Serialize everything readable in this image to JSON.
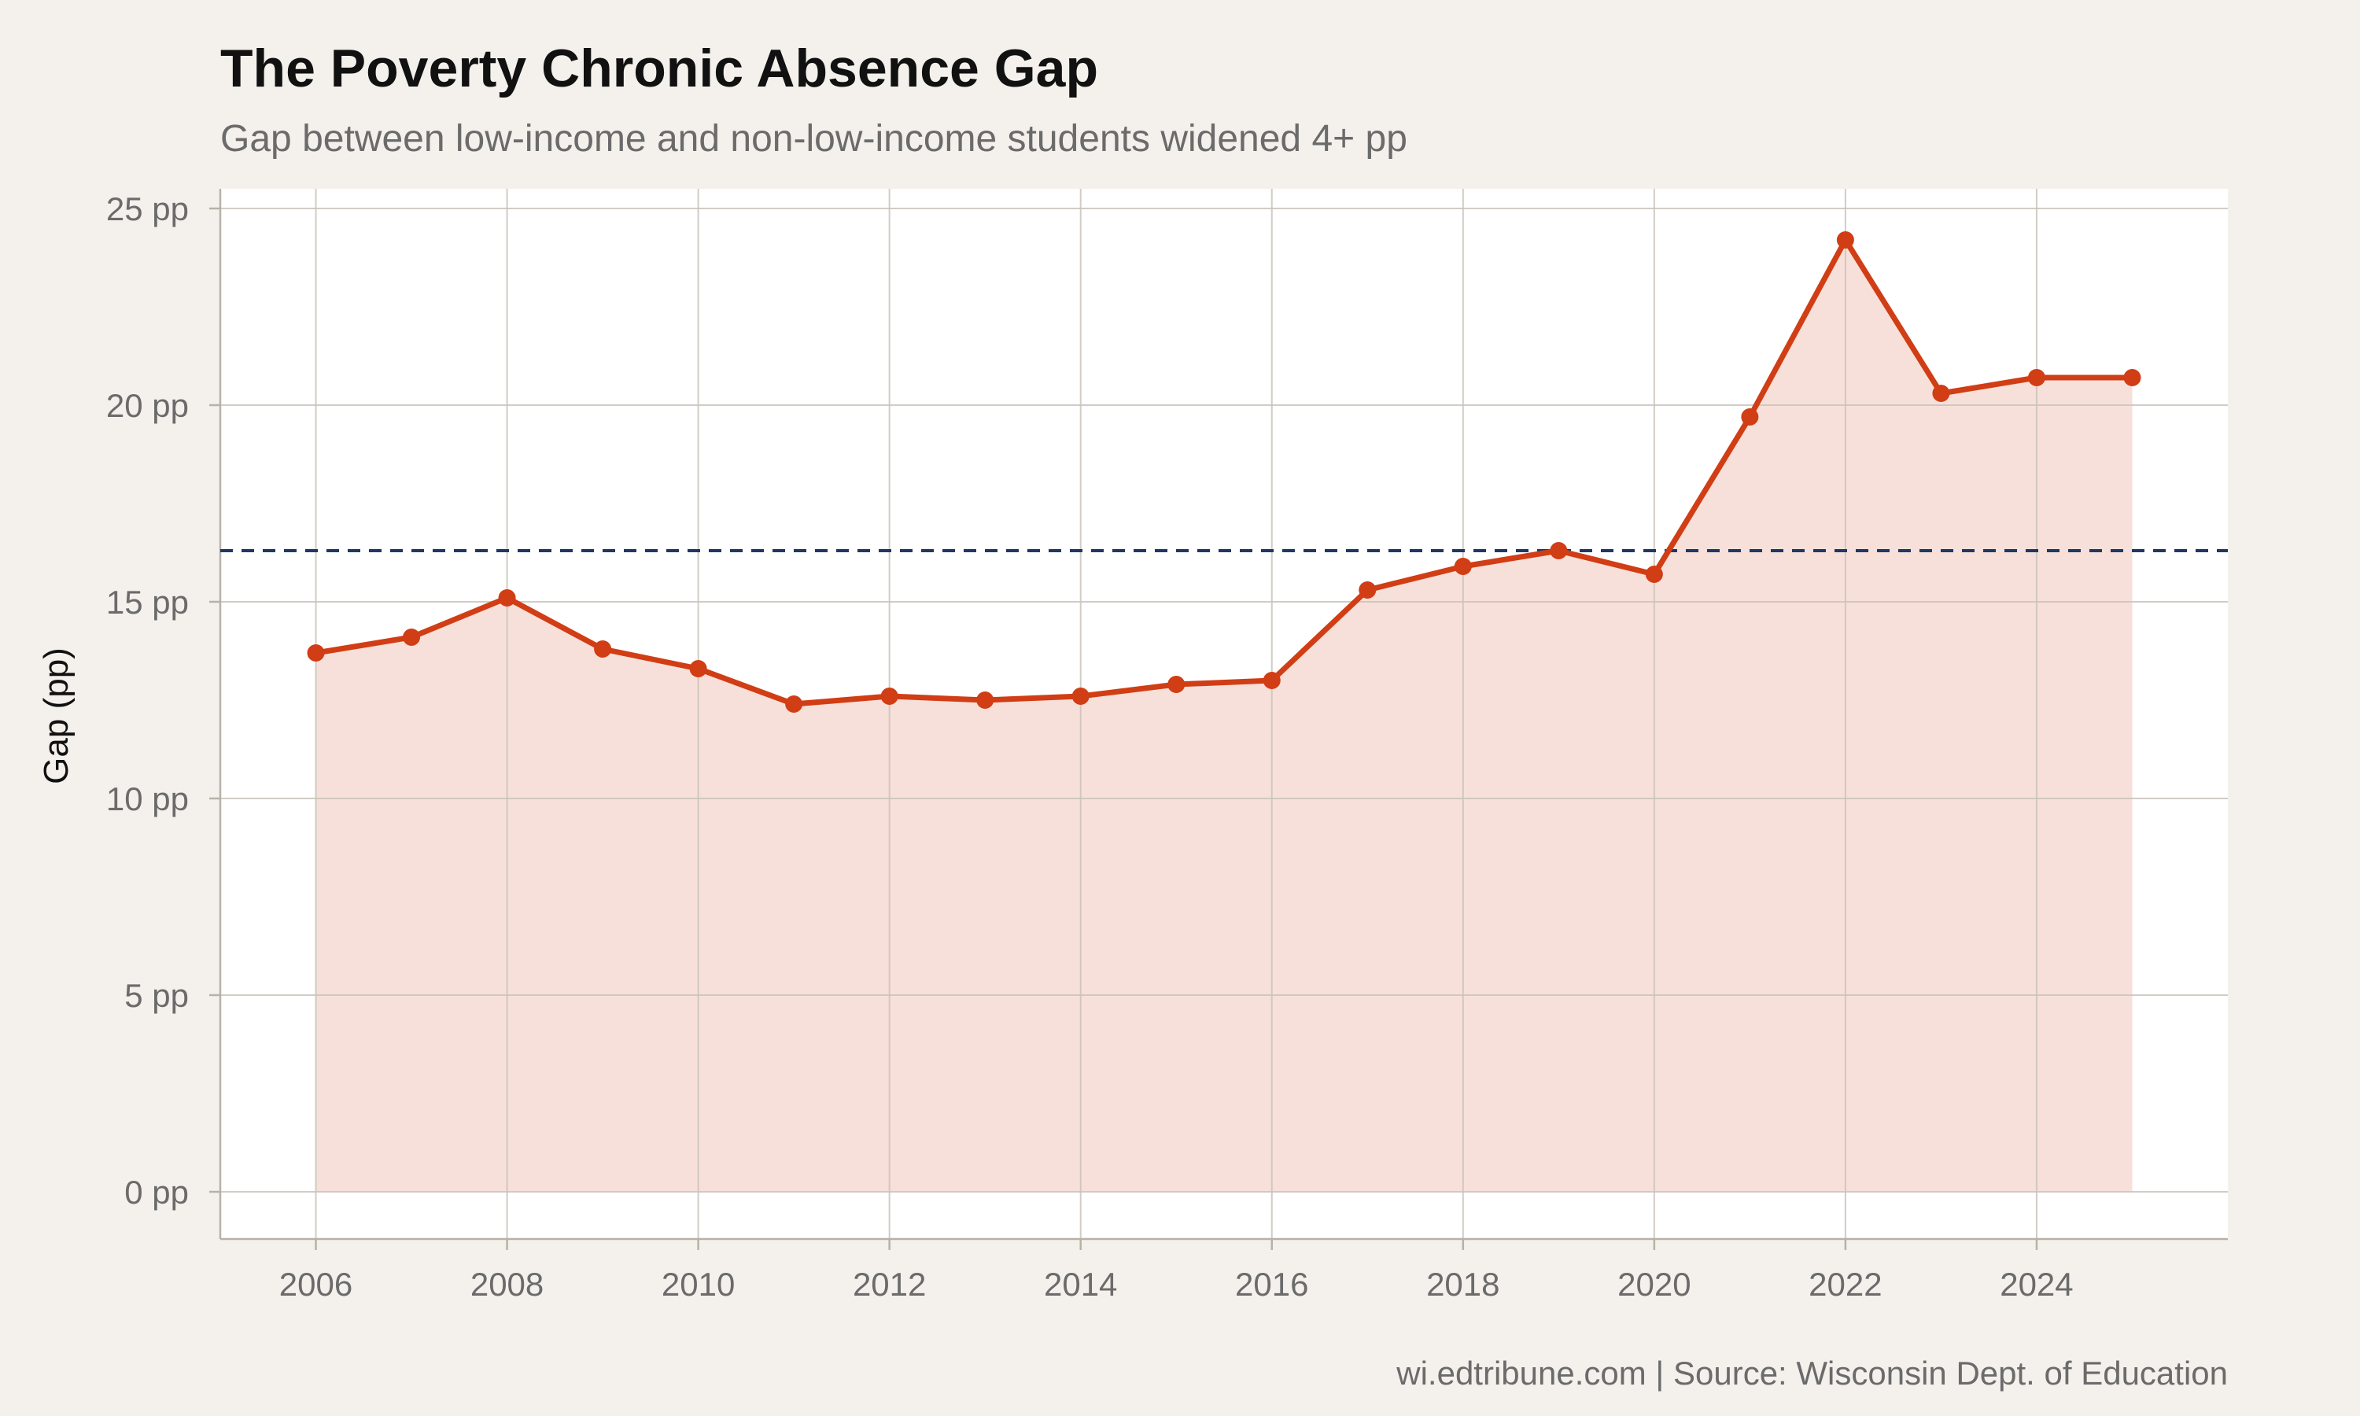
{
  "chart_data": {
    "type": "area",
    "title": "The Poverty Chronic Absence Gap",
    "subtitle": "Gap between low-income and non-low-income students widened 4+ pp",
    "xlabel": "",
    "ylabel": "Gap (pp)",
    "caption": "wi.edtribune.com | Source: Wisconsin Dept. of Education",
    "x": [
      2006,
      2007,
      2008,
      2009,
      2010,
      2011,
      2012,
      2013,
      2014,
      2015,
      2016,
      2017,
      2018,
      2019,
      2020,
      2021,
      2022,
      2023,
      2024,
      2025
    ],
    "series": [
      {
        "values": [
          13.7,
          14.1,
          15.1,
          13.8,
          13.3,
          12.4,
          12.6,
          12.5,
          12.6,
          12.9,
          13.0,
          15.3,
          15.9,
          16.3,
          15.7,
          19.7,
          24.2,
          20.3,
          20.7,
          20.7
        ],
        "color": "#d13d14"
      }
    ],
    "reference_line": {
      "value": 16.3,
      "style": "dashed",
      "color": "#1f3864"
    },
    "xlim": [
      2005,
      2026
    ],
    "ylim": [
      -1.2,
      25.5
    ],
    "xticks": [
      2006,
      2008,
      2010,
      2012,
      2014,
      2016,
      2018,
      2020,
      2022,
      2024
    ],
    "yticks": [
      0,
      5,
      10,
      15,
      20,
      25
    ],
    "ytick_suffix": " pp",
    "grid": true,
    "area_fill": "#f8e0da",
    "panel_background": "#ffffff",
    "grid_color": "#c9c3bb"
  }
}
